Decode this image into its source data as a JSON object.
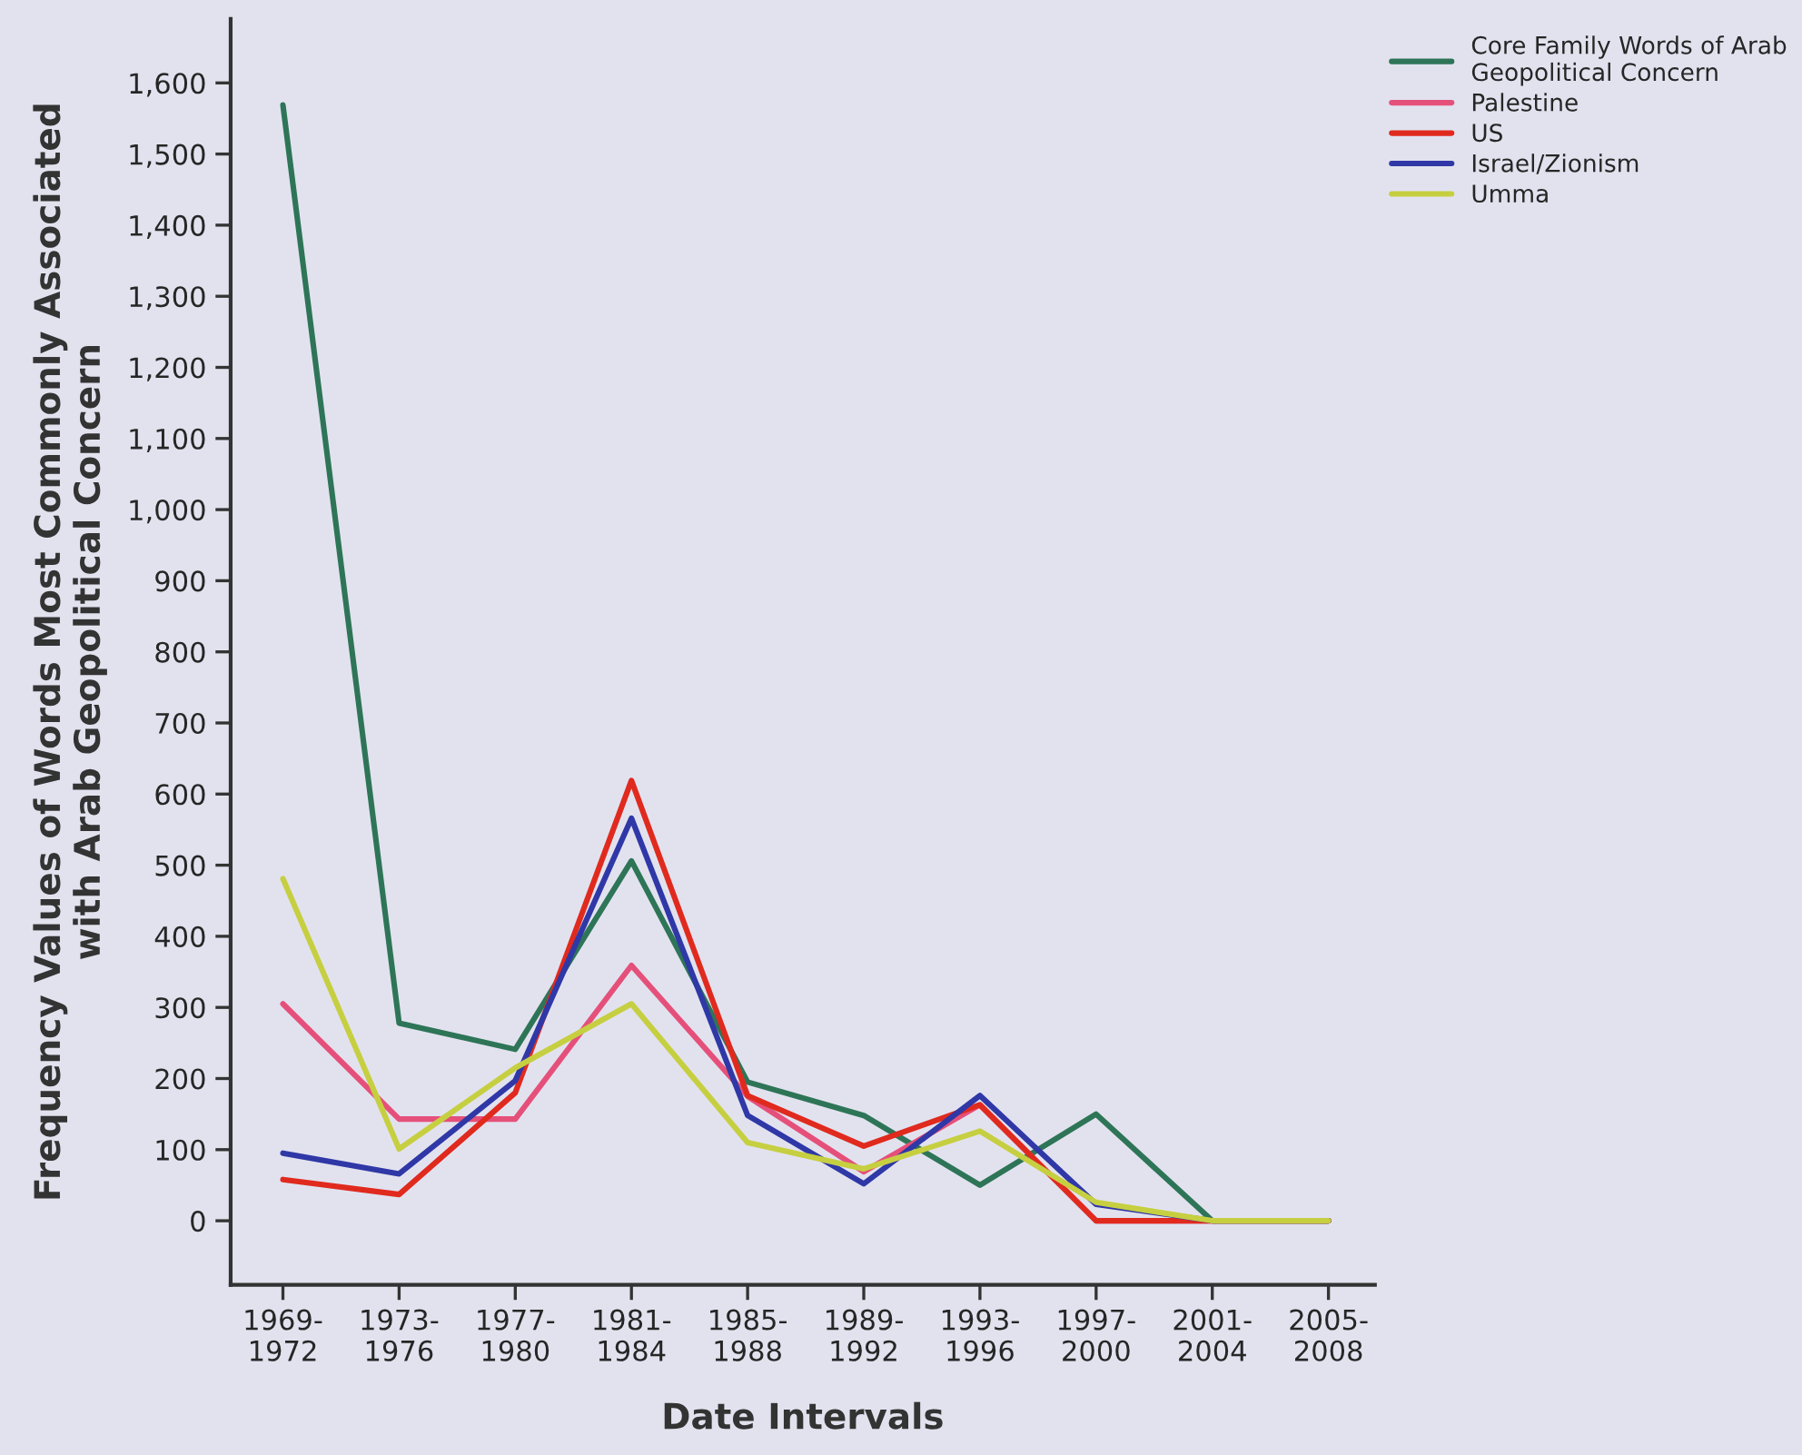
{
  "chart_data": {
    "type": "line",
    "xlabel": "Date Intervals",
    "ylabel": "Frequency Values of Words Most Commonly Associated\nwith Arab Geopolitical Concern",
    "categories": [
      "1969-\n1972",
      "1973-\n1976",
      "1977-\n1980",
      "1981-\n1984",
      "1985-\n1988",
      "1989-\n1992",
      "1993-\n1996",
      "1997-\n2000",
      "2001-\n2004",
      "2005-\n2008"
    ],
    "series": [
      {
        "name": "Core Family Words of Arab\nGeopolitical Concern",
        "color": "#2e7557",
        "values": [
          1569,
          278,
          241,
          506,
          195,
          148,
          50,
          150,
          0,
          0
        ]
      },
      {
        "name": "Palestine",
        "color": "#e5507a",
        "values": [
          305,
          143,
          143,
          359,
          175,
          69,
          163,
          0,
          0,
          0
        ]
      },
      {
        "name": "US",
        "color": "#e02a1e",
        "values": [
          58,
          37,
          180,
          619,
          176,
          105,
          163,
          0,
          0,
          0
        ]
      },
      {
        "name": "Israel/Zionism",
        "color": "#2f38a6",
        "values": [
          95,
          66,
          197,
          566,
          148,
          52,
          176,
          23,
          0,
          0
        ]
      },
      {
        "name": "Umma",
        "color": "#c6cf40",
        "values": [
          481,
          101,
          215,
          305,
          110,
          73,
          126,
          26,
          0,
          0
        ]
      }
    ],
    "ylim": [
      -90,
      1690
    ],
    "yticks": [
      {
        "value": 0,
        "label": "0"
      },
      {
        "value": 100,
        "label": "100"
      },
      {
        "value": 200,
        "label": "200"
      },
      {
        "value": 300,
        "label": "300"
      },
      {
        "value": 400,
        "label": "400"
      },
      {
        "value": 500,
        "label": "500"
      },
      {
        "value": 600,
        "label": "600"
      },
      {
        "value": 700,
        "label": "700"
      },
      {
        "value": 800,
        "label": "800"
      },
      {
        "value": 900,
        "label": "900"
      },
      {
        "value": 1000,
        "label": "1,000"
      },
      {
        "value": 1100,
        "label": "1,100"
      },
      {
        "value": 1200,
        "label": "1,200"
      },
      {
        "value": 1300,
        "label": "1,300"
      },
      {
        "value": 1400,
        "label": "1,400"
      },
      {
        "value": 1500,
        "label": "1,500"
      },
      {
        "value": 1600,
        "label": "1,600"
      }
    ],
    "grid": false,
    "legend": "top right",
    "marker": "none",
    "line_style": "solid"
  }
}
